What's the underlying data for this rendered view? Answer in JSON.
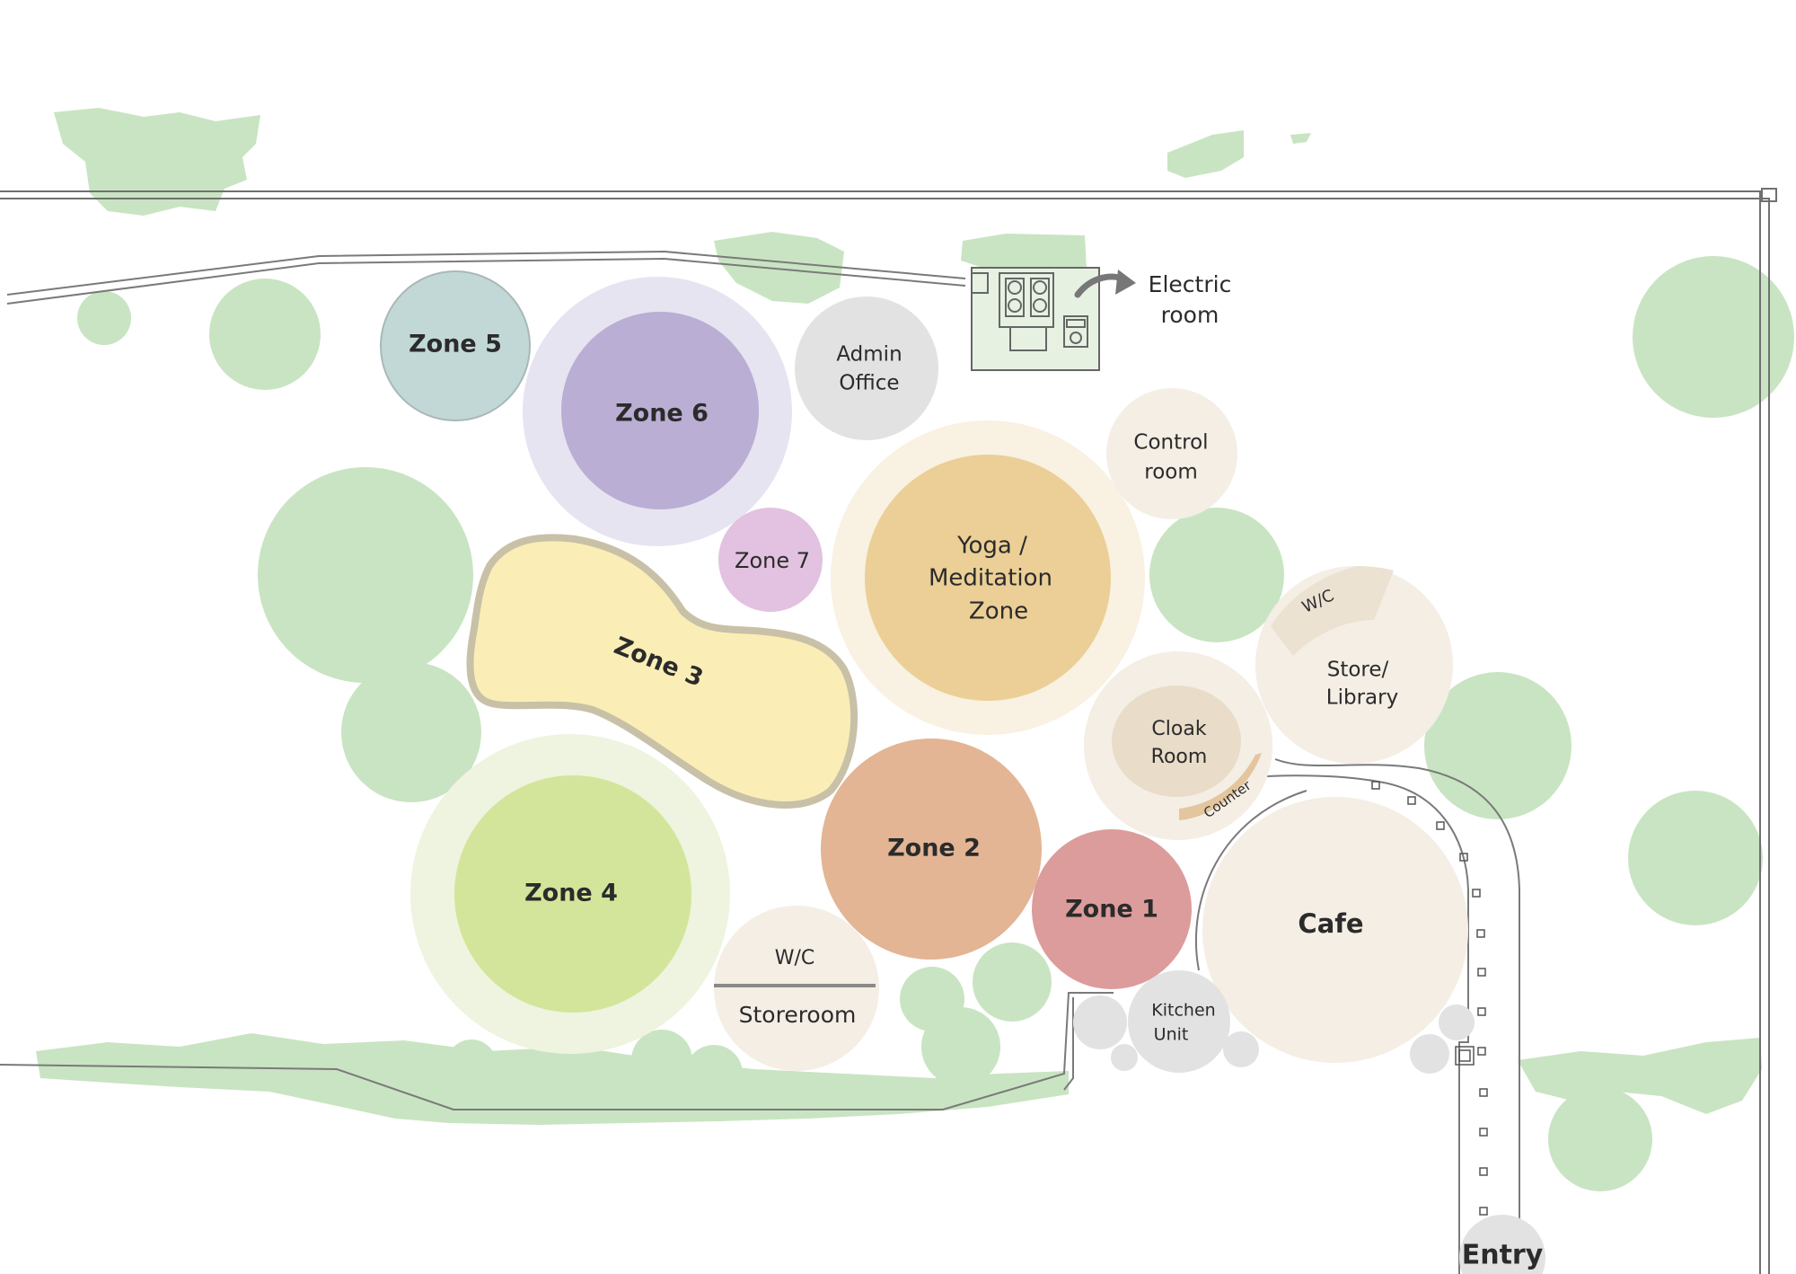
{
  "colors": {
    "vegetation": "#c9e4c2",
    "boundary": "#707070",
    "zone_1": "#dc9c9b",
    "zone_2": "#e3b594",
    "zone_3": "#faeeb6",
    "zone_4": "#d3e59a",
    "zone_4_halo": "#eef4df",
    "zone_5": "#c2d8d7",
    "zone_6": "#baaed4",
    "zone_6_halo": "#e7e4f1",
    "zone_7": "#e2c2e0",
    "yoga": "#ebcf97",
    "yoga_halo": "#f9f1e1",
    "neutral": "#f4eee5",
    "grey": "#e2e2e2"
  },
  "zones": {
    "zone_1": "Zone 1",
    "zone_2": "Zone 2",
    "zone_3": "Zone 3",
    "zone_4": "Zone 4",
    "zone_5": "Zone 5",
    "zone_6": "Zone 6",
    "zone_7": "Zone 7",
    "yoga": [
      "Yoga /",
      "Meditation",
      "Zone"
    ]
  },
  "rooms": {
    "admin_office": [
      "Admin",
      "Office"
    ],
    "control_room": [
      "Control",
      "room"
    ],
    "electric_room": [
      "Electric",
      "room"
    ],
    "store_library": [
      "Store/",
      "Library"
    ],
    "store_wc": "W/C",
    "cloak_room": [
      "Cloak",
      "Room"
    ],
    "counter": "Counter",
    "cafe": "Cafe",
    "kitchen_unit": [
      "Kitchen",
      "Unit"
    ],
    "wc": "W/C",
    "storeroom": "Storeroom",
    "entry": "Entry"
  }
}
